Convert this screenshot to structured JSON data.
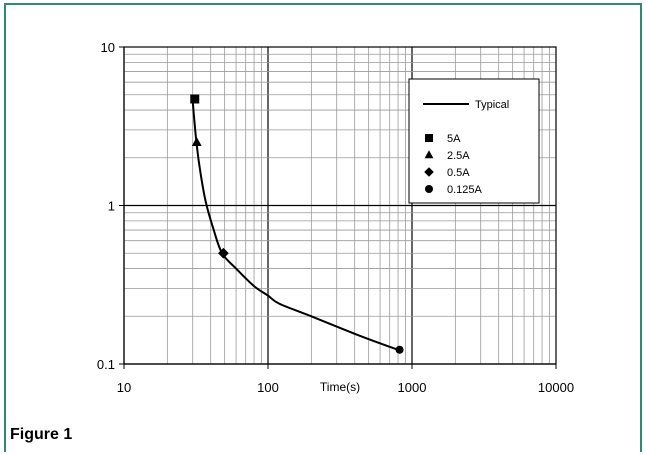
{
  "caption": "Figure 1",
  "chart_data": {
    "type": "line",
    "title": "",
    "xlabel": "Time(s)",
    "ylabel": "",
    "xscale": "log",
    "yscale": "log",
    "xlim": [
      10,
      10000
    ],
    "ylim": [
      0.1,
      10
    ],
    "x_tick_labels": [
      "10",
      "100",
      "1000",
      "10000"
    ],
    "y_tick_labels": [
      "0.1",
      "1",
      "10"
    ],
    "grid": true,
    "legend_position": "top-right",
    "series": [
      {
        "name": "Typical",
        "kind": "line",
        "color": "#000000",
        "x": [
          30,
          30.5,
          32,
          34,
          37,
          42,
          48,
          60,
          80,
          100,
          120,
          200,
          400,
          600,
          820
        ],
        "y": [
          4.6,
          3.8,
          2.4,
          1.6,
          1.05,
          0.7,
          0.5,
          0.4,
          0.31,
          0.27,
          0.24,
          0.2,
          0.155,
          0.135,
          0.122
        ]
      },
      {
        "name": "5A",
        "kind": "marker",
        "marker": "square",
        "x": [
          31
        ],
        "y": [
          4.7
        ]
      },
      {
        "name": "2.5A",
        "kind": "marker",
        "marker": "triangle",
        "x": [
          32
        ],
        "y": [
          2.5
        ]
      },
      {
        "name": "0.5A",
        "kind": "marker",
        "marker": "diamond",
        "x": [
          49
        ],
        "y": [
          0.5
        ]
      },
      {
        "name": "0.125A",
        "kind": "marker",
        "marker": "circle",
        "x": [
          820
        ],
        "y": [
          0.123
        ]
      }
    ]
  }
}
